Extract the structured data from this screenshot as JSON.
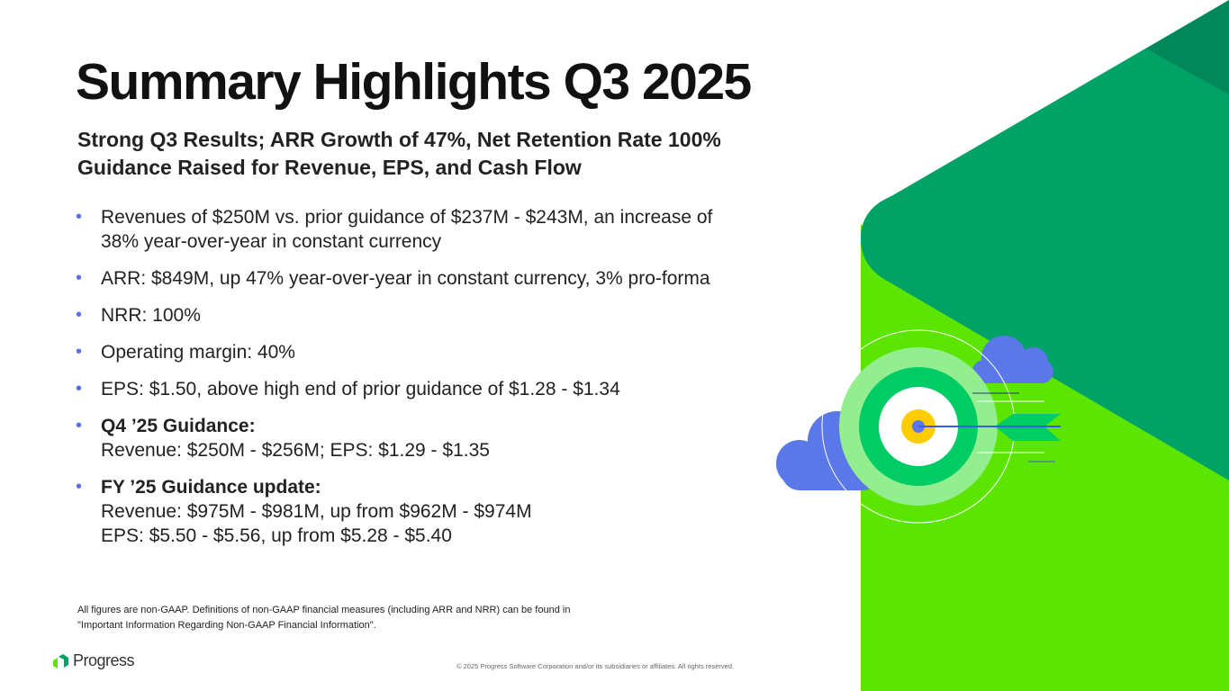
{
  "title": "Summary Highlights Q3 2025",
  "subtitle": [
    "Strong Q3 Results; ARR Growth of 47%, Net Retention Rate 100%",
    "Guidance Raised for Revenue, EPS, and Cash Flow"
  ],
  "bullets": [
    {
      "lines": [
        "Revenues of $250M vs. prior guidance of $237M - $243M, an increase of",
        "38% year-over-year in constant currency"
      ]
    },
    {
      "lines": [
        "ARR: $849M, up 47% year-over-year in constant currency, 3% pro-forma"
      ]
    },
    {
      "lines": [
        "NRR: 100%"
      ]
    },
    {
      "lines": [
        "Operating margin: 40%"
      ]
    },
    {
      "lines": [
        "EPS: $1.50, above high end of prior guidance of $1.28 - $1.34"
      ]
    },
    {
      "heading": "Q4 ’25 Guidance:",
      "lines": [
        "Revenue: $250M - $256M; EPS: $1.29 - $1.35"
      ]
    },
    {
      "heading": "FY ’25 Guidance update:",
      "lines": [
        "Revenue: $975M - $981M, up from $962M - $974M",
        "EPS: $5.50 - $5.56, up from $5.28 - $5.40"
      ]
    }
  ],
  "bullet_char": "•",
  "note": [
    "All figures are non-GAAP. Definitions of non-GAAP financial measures (including ARR and NRR) can be found in",
    "\"Important Information Regarding Non-GAAP Financial Information\"."
  ],
  "logo": "Progress",
  "copyright": "© 2025 Progress Software Corporation and/or its subsidiaries or affiliates. All rights reserved.",
  "colors": {
    "lime": "#5CE500",
    "green": "#00A365",
    "dark_green": "#00875A",
    "blue": "#5A78E8",
    "yellow": "#FFCC00"
  }
}
